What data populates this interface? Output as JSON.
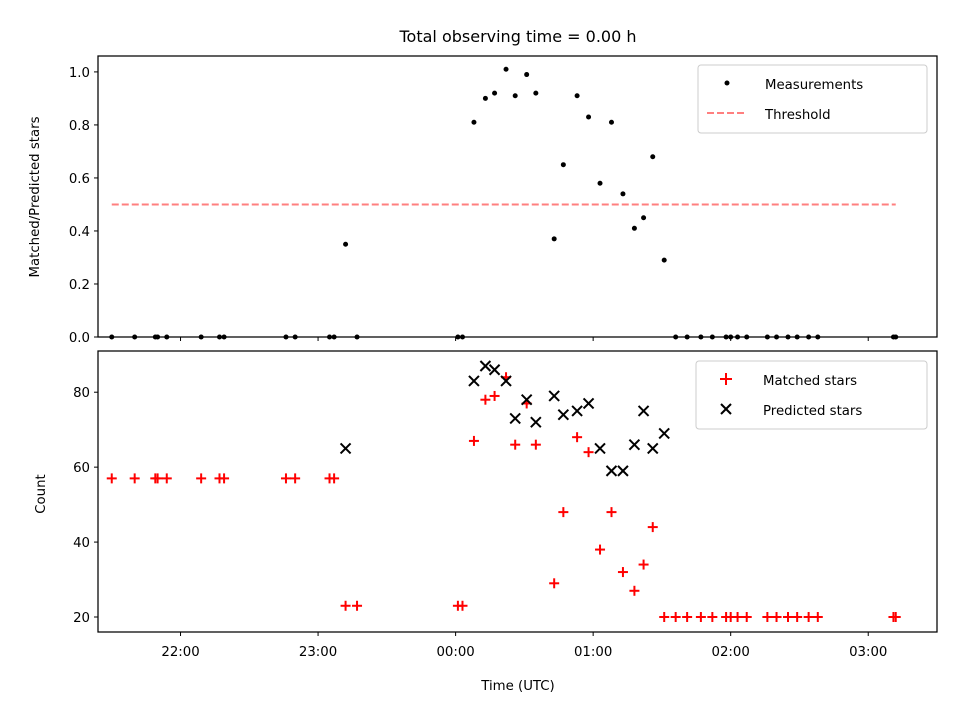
{
  "chart_data": [
    {
      "type": "scatter",
      "title": "Total observing time = 0.00 h",
      "ylabel": "Matched/Predicted stars",
      "xlim": [
        "21:24",
        "03:30"
      ],
      "ylim": [
        0,
        1.06
      ],
      "yticks": [
        "0.0",
        "0.2",
        "0.4",
        "0.6",
        "0.8",
        "1.0"
      ],
      "legend_position": "top-right",
      "threshold": {
        "name": "Threshold",
        "value": 0.5,
        "x_start": "21:30",
        "x_end": "03:12",
        "color": "#ff7f7f"
      },
      "series": [
        {
          "name": "Measurements",
          "color": "#000000",
          "points": [
            [
              "21:30",
              0
            ],
            [
              "21:40",
              0
            ],
            [
              "21:49",
              0
            ],
            [
              "21:50",
              0
            ],
            [
              "21:54",
              0
            ],
            [
              "22:09",
              0
            ],
            [
              "22:17",
              0
            ],
            [
              "22:19",
              0
            ],
            [
              "22:46",
              0
            ],
            [
              "22:50",
              0
            ],
            [
              "23:05",
              0
            ],
            [
              "23:07",
              0
            ],
            [
              "23:12",
              0.35
            ],
            [
              "23:17",
              0
            ],
            [
              "00:01",
              0
            ],
            [
              "00:03",
              0
            ],
            [
              "00:08",
              0.81
            ],
            [
              "00:13",
              0.9
            ],
            [
              "00:17",
              0.92
            ],
            [
              "00:22",
              1.01
            ],
            [
              "00:26",
              0.91
            ],
            [
              "00:31",
              0.99
            ],
            [
              "00:35",
              0.92
            ],
            [
              "00:43",
              0.37
            ],
            [
              "00:47",
              0.65
            ],
            [
              "00:53",
              0.91
            ],
            [
              "00:58",
              0.83
            ],
            [
              "01:03",
              0.58
            ],
            [
              "01:08",
              0.81
            ],
            [
              "01:13",
              0.54
            ],
            [
              "01:18",
              0.41
            ],
            [
              "01:22",
              0.45
            ],
            [
              "01:26",
              0.68
            ],
            [
              "01:31",
              0.29
            ],
            [
              "01:36",
              0
            ],
            [
              "01:41",
              0
            ],
            [
              "01:47",
              0
            ],
            [
              "01:52",
              0
            ],
            [
              "01:58",
              0
            ],
            [
              "02:00",
              0
            ],
            [
              "02:03",
              0
            ],
            [
              "02:07",
              0
            ],
            [
              "02:16",
              0
            ],
            [
              "02:20",
              0
            ],
            [
              "02:25",
              0
            ],
            [
              "02:29",
              0
            ],
            [
              "02:34",
              0
            ],
            [
              "02:38",
              0
            ],
            [
              "03:11",
              0
            ],
            [
              "03:12",
              0
            ]
          ]
        }
      ]
    },
    {
      "type": "scatter",
      "xlabel": "Time (UTC)",
      "ylabel": "Count",
      "xlim": [
        "21:24",
        "03:30"
      ],
      "ylim": [
        16,
        91
      ],
      "xticks": [
        "22:00",
        "23:00",
        "00:00",
        "01:00",
        "02:00",
        "03:00"
      ],
      "yticks": [
        "20",
        "40",
        "60",
        "80"
      ],
      "legend_position": "top-right",
      "series": [
        {
          "name": "Matched stars",
          "color": "#ff0000",
          "marker": "plus",
          "points": [
            [
              "21:30",
              57
            ],
            [
              "21:40",
              57
            ],
            [
              "21:49",
              57
            ],
            [
              "21:50",
              57
            ],
            [
              "21:54",
              57
            ],
            [
              "22:09",
              57
            ],
            [
              "22:17",
              57
            ],
            [
              "22:19",
              57
            ],
            [
              "22:46",
              57
            ],
            [
              "22:50",
              57
            ],
            [
              "23:05",
              57
            ],
            [
              "23:07",
              57
            ],
            [
              "23:12",
              23
            ],
            [
              "23:17",
              23
            ],
            [
              "00:01",
              23
            ],
            [
              "00:03",
              23
            ],
            [
              "00:08",
              67
            ],
            [
              "00:13",
              78
            ],
            [
              "00:17",
              79
            ],
            [
              "00:22",
              84
            ],
            [
              "00:26",
              66
            ],
            [
              "00:31",
              77
            ],
            [
              "00:35",
              66
            ],
            [
              "00:43",
              29
            ],
            [
              "00:47",
              48
            ],
            [
              "00:53",
              68
            ],
            [
              "00:58",
              64
            ],
            [
              "01:03",
              38
            ],
            [
              "01:08",
              48
            ],
            [
              "01:13",
              32
            ],
            [
              "01:18",
              27
            ],
            [
              "01:22",
              34
            ],
            [
              "01:26",
              44
            ],
            [
              "01:31",
              20
            ],
            [
              "01:36",
              20
            ],
            [
              "01:41",
              20
            ],
            [
              "01:47",
              20
            ],
            [
              "01:52",
              20
            ],
            [
              "01:58",
              20
            ],
            [
              "02:00",
              20
            ],
            [
              "02:03",
              20
            ],
            [
              "02:07",
              20
            ],
            [
              "02:16",
              20
            ],
            [
              "02:20",
              20
            ],
            [
              "02:25",
              20
            ],
            [
              "02:29",
              20
            ],
            [
              "02:34",
              20
            ],
            [
              "02:38",
              20
            ],
            [
              "03:11",
              20
            ],
            [
              "03:12",
              20
            ]
          ]
        },
        {
          "name": "Predicted stars",
          "color": "#000000",
          "marker": "x",
          "points": [
            [
              "23:12",
              65
            ],
            [
              "00:08",
              83
            ],
            [
              "00:13",
              87
            ],
            [
              "00:17",
              86
            ],
            [
              "00:22",
              83
            ],
            [
              "00:26",
              73
            ],
            [
              "00:31",
              78
            ],
            [
              "00:35",
              72
            ],
            [
              "00:43",
              79
            ],
            [
              "00:47",
              74
            ],
            [
              "00:53",
              75
            ],
            [
              "00:58",
              77
            ],
            [
              "01:03",
              65
            ],
            [
              "01:08",
              59
            ],
            [
              "01:13",
              59
            ],
            [
              "01:18",
              66
            ],
            [
              "01:22",
              75
            ],
            [
              "01:26",
              65
            ],
            [
              "01:31",
              69
            ]
          ]
        }
      ]
    }
  ]
}
